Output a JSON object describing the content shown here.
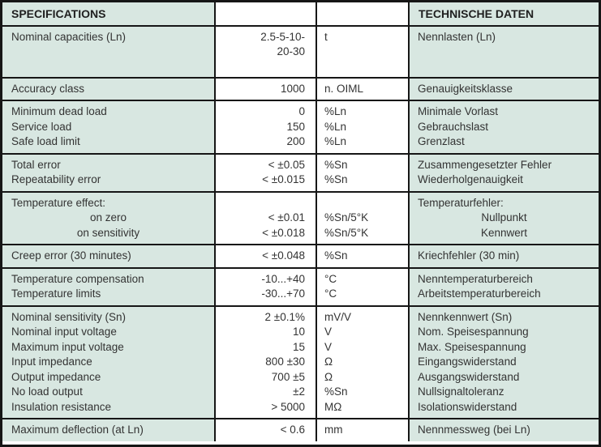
{
  "title": "Load cell specification table",
  "colors": {
    "cell_green": "#d8e7e1",
    "cell_white": "#ffffff",
    "border": "#161616",
    "text": "#333333"
  },
  "header": {
    "left": "SPECIFICATIONS",
    "right": "TECHNISCHE DATEN"
  },
  "chart_data": {
    "type": "table",
    "columns": [
      "specification_en",
      "value",
      "unit",
      "specification_de"
    ],
    "note": "columns 1 and 4 have green background, columns 2 and 3 white; values right-aligned"
  },
  "sections": [
    {
      "row_class": "row-nominal",
      "en": [
        {
          "text": "Nominal capacities (Ln)"
        }
      ],
      "value": [
        {
          "text": "2.5-5-10-"
        },
        {
          "text": "20-30"
        }
      ],
      "unit": [
        {
          "text": "t"
        }
      ],
      "de": [
        {
          "text": "Nennlasten (Ln)"
        }
      ]
    },
    {
      "en": [
        {
          "text": "Accuracy class"
        }
      ],
      "value": [
        {
          "text": "1000"
        }
      ],
      "unit": [
        {
          "text": "n. OIML"
        }
      ],
      "de": [
        {
          "text": "Genauigkeitsklasse"
        }
      ]
    },
    {
      "en": [
        {
          "text": "Minimum dead load"
        },
        {
          "text": "Service load"
        },
        {
          "text": "Safe load limit"
        }
      ],
      "value": [
        {
          "text": "0"
        },
        {
          "text": "150"
        },
        {
          "text": "200"
        }
      ],
      "unit": [
        {
          "text": "%Ln"
        },
        {
          "text": "%Ln"
        },
        {
          "text": "%Ln"
        }
      ],
      "de": [
        {
          "text": "Minimale Vorlast"
        },
        {
          "text": "Gebrauchslast"
        },
        {
          "text": "Grenzlast"
        }
      ]
    },
    {
      "en": [
        {
          "text": "Total error"
        },
        {
          "text": "Repeatability error"
        }
      ],
      "value": [
        {
          "text": "< ±0.05"
        },
        {
          "text": "< ±0.015"
        }
      ],
      "unit": [
        {
          "text": "%Sn"
        },
        {
          "text": "%Sn"
        }
      ],
      "de": [
        {
          "text": "Zusammengesetzter Fehler"
        },
        {
          "text": "Wiederholgenauigkeit"
        }
      ]
    },
    {
      "en": [
        {
          "text": "Temperature effect:"
        },
        {
          "text": "on zero",
          "align": "center"
        },
        {
          "text": "on sensitivity",
          "align": "center"
        }
      ],
      "value": [
        {
          "text": ""
        },
        {
          "text": "< ±0.01"
        },
        {
          "text": "< ±0.018"
        }
      ],
      "unit": [
        {
          "text": ""
        },
        {
          "text": "%Sn/5°K"
        },
        {
          "text": "%Sn/5°K"
        }
      ],
      "de": [
        {
          "text": "Temperaturfehler:"
        },
        {
          "text": "Nullpunkt",
          "align": "center"
        },
        {
          "text": "Kennwert",
          "align": "center"
        }
      ]
    },
    {
      "en": [
        {
          "text": "Creep error (30 minutes)"
        }
      ],
      "value": [
        {
          "text": "< ±0.048"
        }
      ],
      "unit": [
        {
          "text": "%Sn"
        }
      ],
      "de": [
        {
          "text": "Kriechfehler (30 min)"
        }
      ]
    },
    {
      "en": [
        {
          "text": "Temperature compensation"
        },
        {
          "text": "Temperature limits"
        }
      ],
      "value": [
        {
          "text": "-10...+40"
        },
        {
          "text": "-30...+70"
        }
      ],
      "unit": [
        {
          "text": "°C"
        },
        {
          "text": "°C"
        }
      ],
      "de": [
        {
          "text": "Nenntemperaturbereich"
        },
        {
          "text": "Arbeitstemperaturbereich"
        }
      ]
    },
    {
      "en": [
        {
          "text": "Nominal sensitivity (Sn)"
        },
        {
          "text": "Nominal input voltage"
        },
        {
          "text": "Maximum input voltage"
        },
        {
          "text": "Input impedance"
        },
        {
          "text": "Output impedance"
        },
        {
          "text": "No load output"
        },
        {
          "text": "Insulation resistance"
        }
      ],
      "value": [
        {
          "text": "2 ±0.1%"
        },
        {
          "text": "10"
        },
        {
          "text": "15"
        },
        {
          "text": "800 ±30"
        },
        {
          "text": "700 ±5"
        },
        {
          "text": "±2"
        },
        {
          "text": "> 5000"
        }
      ],
      "unit": [
        {
          "text": "mV/V"
        },
        {
          "text": "V"
        },
        {
          "text": "V"
        },
        {
          "text": "Ω"
        },
        {
          "text": "Ω"
        },
        {
          "text": "%Sn"
        },
        {
          "text": "MΩ"
        }
      ],
      "de": [
        {
          "text": "Nennkennwert (Sn)"
        },
        {
          "text": "Nom. Speisespannung"
        },
        {
          "text": "Max. Speisespannung"
        },
        {
          "text": "Eingangswiderstand"
        },
        {
          "text": "Ausgangswiderstand"
        },
        {
          "text": "Nullsignaltoleranz"
        },
        {
          "text": "Isolationswiderstand"
        }
      ]
    },
    {
      "en": [
        {
          "text": "Maximum deflection (at Ln)"
        }
      ],
      "value": [
        {
          "text": "< 0.6"
        }
      ],
      "unit": [
        {
          "text": "mm"
        }
      ],
      "de": [
        {
          "text": "Nennmessweg (bei Ln)"
        }
      ]
    }
  ]
}
